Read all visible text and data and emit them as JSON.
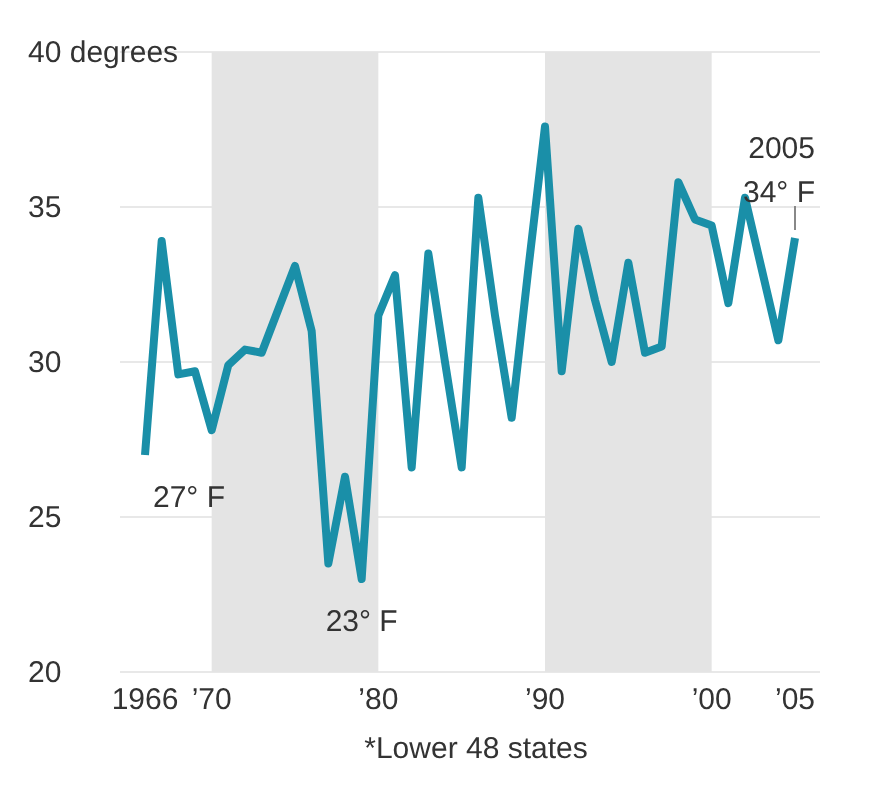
{
  "chart_data": {
    "type": "line",
    "x": [
      1966,
      1967,
      1968,
      1969,
      1970,
      1971,
      1972,
      1973,
      1974,
      1975,
      1976,
      1977,
      1978,
      1979,
      1980,
      1981,
      1982,
      1983,
      1984,
      1985,
      1986,
      1987,
      1988,
      1989,
      1990,
      1991,
      1992,
      1993,
      1994,
      1995,
      1996,
      1997,
      1998,
      1999,
      2000,
      2001,
      2002,
      2003,
      2004,
      2005
    ],
    "series": [
      {
        "color": "#1a8fa8",
        "values": [
          27,
          33.9,
          29.6,
          29.7,
          27.8,
          29.9,
          30.4,
          30.3,
          31.7,
          33.1,
          31,
          23.5,
          26.3,
          23,
          31.5,
          32.8,
          26.6,
          33.5,
          30,
          26.6,
          35.3,
          31.5,
          28.2,
          33,
          37.6,
          29.7,
          34.3,
          32,
          30,
          33.2,
          30.3,
          30.5,
          35.8,
          34.6,
          34.4,
          31.9,
          35.3,
          33,
          30.7,
          34
        ]
      }
    ],
    "xlim": [
      1964.5,
      2006.5
    ],
    "xticks": [
      {
        "value": 1966,
        "label": "1966"
      },
      {
        "value": 1970,
        "label": "’70"
      },
      {
        "value": 1980,
        "label": "’80"
      },
      {
        "value": 1990,
        "label": "’90"
      },
      {
        "value": 2000,
        "label": "’00"
      },
      {
        "value": 2005,
        "label": "’05"
      }
    ],
    "ylim": [
      20,
      40
    ],
    "yticks": [
      20,
      25,
      30,
      35,
      {
        "value": 40,
        "label": "40 degrees"
      }
    ],
    "grid": "y",
    "marker": "none",
    "line_style": "solid",
    "bands": [
      {
        "axis": "x",
        "from": 1970,
        "to": 1980,
        "color": "#e4e4e4"
      },
      {
        "axis": "x",
        "from": 1990,
        "to": 2000,
        "color": "#e4e4e4"
      }
    ],
    "annotations": [
      {
        "text": "27° F",
        "x": 1966,
        "y": 27
      },
      {
        "text": "23° F",
        "x": 1979,
        "y": 23
      },
      {
        "text": "2005\n34° F",
        "x": 2005,
        "y": 34
      },
      "*Lower 48 states"
    ]
  }
}
